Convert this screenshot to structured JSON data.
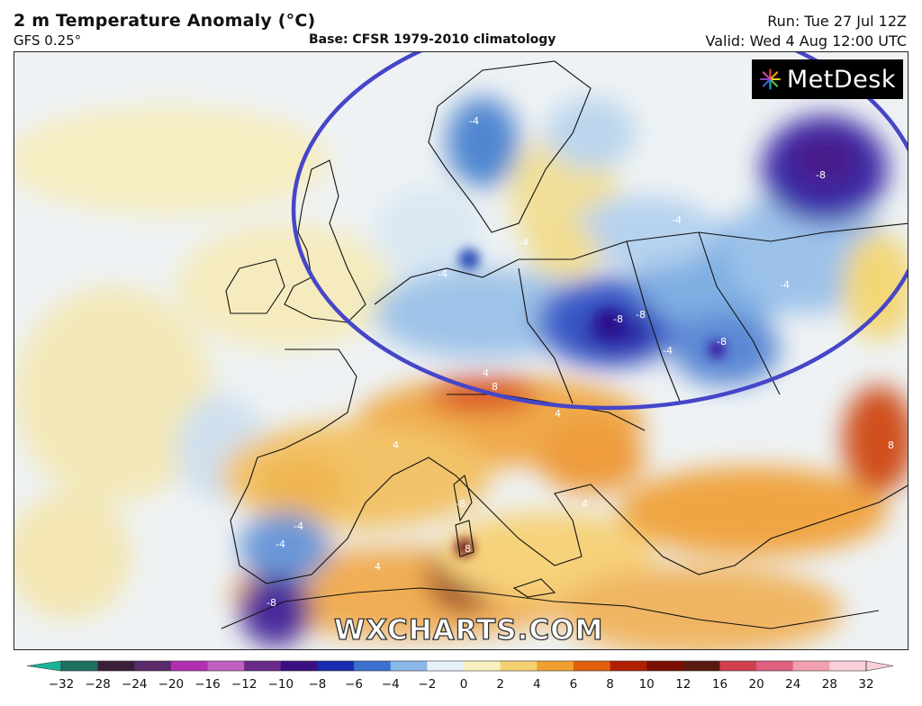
{
  "header": {
    "title": "2 m Temperature Anomaly (°C)",
    "model": "GFS 0.25°",
    "base": "Base: CFSR 1979-2010 climatology",
    "run": "Run: Tue 27 Jul 12Z",
    "valid": "Valid: Wed 4 Aug 12:00 UTC"
  },
  "branding": {
    "logo_text": "MetDesk",
    "logo_icon": "starburst-icon",
    "watermark": "WXCHARTS.COM"
  },
  "colorbar": {
    "ticks": [
      "−32",
      "−28",
      "−24",
      "−20",
      "−16",
      "−12",
      "−10",
      "−8",
      "−6",
      "−4",
      "−2",
      "0",
      "2",
      "4",
      "6",
      "8",
      "10",
      "12",
      "16",
      "20",
      "24",
      "28",
      "32"
    ],
    "colors": [
      "#1ab39a",
      "#1f6f5e",
      "#3a1f3a",
      "#5a2a6a",
      "#b030b0",
      "#c060c0",
      "#6a2a8a",
      "#3a1080",
      "#1a2ab0",
      "#3a70d0",
      "#8ab8e8",
      "#e8f0f8",
      "#f8f0c0",
      "#f5d070",
      "#f0a030",
      "#e06010",
      "#b02000",
      "#7a1000",
      "#5a1a10",
      "#d04050",
      "#e06080",
      "#f0a0b0",
      "#f8d0d8"
    ]
  },
  "annotation": {
    "shape": "ellipse",
    "color": "#4646c8"
  },
  "contour_labels": [
    "-4",
    "-4",
    "-4",
    "-4",
    "-8",
    "-8",
    "-8",
    "-8",
    "-4",
    "4",
    "4",
    "8",
    "4",
    "-4",
    "-4",
    "-8",
    "4",
    "8",
    "-8",
    "4",
    "-4",
    "8"
  ]
}
